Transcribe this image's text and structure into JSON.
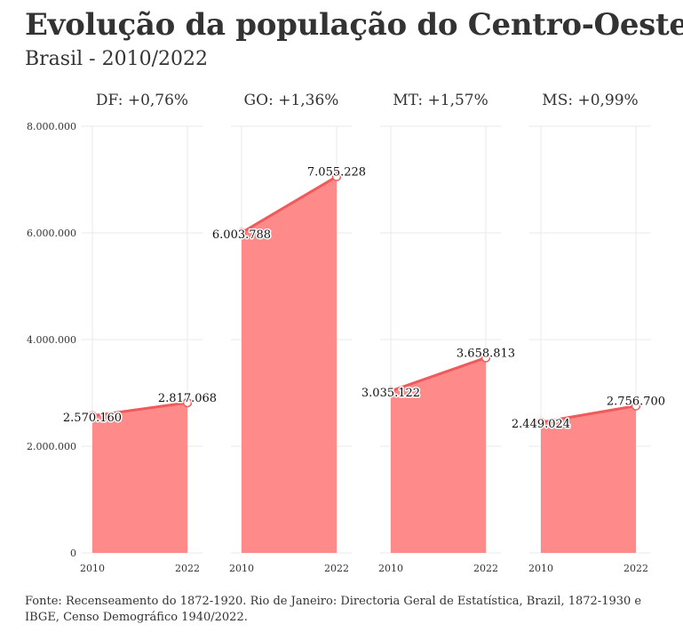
{
  "header": {
    "title": "Evolução da população do Centro-Oeste",
    "subtitle": "Brasil - 2010/2022"
  },
  "caption": "Fonte: Recenseamento do 1872-1920. Rio de Janeiro: Directoria Geral de Estatística, Brazil, 1872-1930 e IBGE, Censo Demográfico 1940/2022.",
  "colors": {
    "area": "#ff8a8a",
    "line": "#f05a5a",
    "grid": "#e8e8e8"
  },
  "chart_data": {
    "type": "area",
    "facets": [
      "DF: +0,76%",
      "GO: +1,36%",
      "MT: +1,57%",
      "MS: +0,99%"
    ],
    "x": [
      "2010",
      "2022"
    ],
    "series": [
      {
        "facet": "DF: +0,76%",
        "values": [
          2570160,
          2817068
        ],
        "labels": [
          "2.570.160",
          "2.817.068"
        ]
      },
      {
        "facet": "GO: +1,36%",
        "values": [
          6003788,
          7055228
        ],
        "labels": [
          "6.003.788",
          "7.055.228"
        ]
      },
      {
        "facet": "MT: +1,57%",
        "values": [
          3035122,
          3658813
        ],
        "labels": [
          "3.035.122",
          "3.658.813"
        ]
      },
      {
        "facet": "MS: +0,99%",
        "values": [
          2449024,
          2756700
        ],
        "labels": [
          "2.449.024",
          "2.756.700"
        ]
      }
    ],
    "yticks": [
      0,
      2000000,
      4000000,
      6000000,
      8000000
    ],
    "ytick_labels": [
      "0",
      "2.000.000",
      "4.000.000",
      "6.000.000",
      "8.000.000"
    ],
    "ylim": [
      0,
      8000000
    ],
    "grid": true
  }
}
